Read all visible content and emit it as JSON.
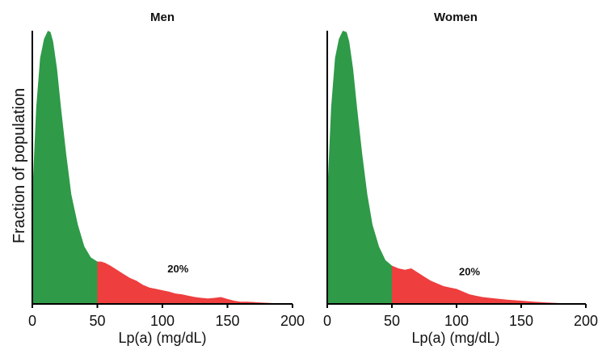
{
  "chart_data": {
    "type": "area",
    "ylabel": "Fraction of population",
    "colors": {
      "below_threshold": "#2f9a48",
      "above_threshold": "#ee3e3e"
    },
    "threshold": 50,
    "panels": [
      {
        "title": "Men",
        "xlabel": "Lp(a) (mg/dL)",
        "xlim": [
          0,
          200
        ],
        "xticks": [
          0,
          50,
          100,
          150,
          200
        ],
        "ylim": [
          0,
          1
        ],
        "annotation": {
          "text": "20%",
          "x": 112,
          "y": 0.115
        },
        "x": [
          0,
          3,
          6,
          9,
          12,
          14,
          16,
          19,
          22,
          26,
          30,
          35,
          40,
          45,
          50,
          53,
          56,
          60,
          65,
          70,
          75,
          80,
          85,
          90,
          95,
          100,
          105,
          110,
          115,
          120,
          125,
          130,
          135,
          140,
          145,
          150,
          155,
          160,
          165,
          170,
          175,
          180,
          185,
          190,
          195,
          200
        ],
        "y": [
          0.4,
          0.72,
          0.9,
          0.97,
          1.0,
          0.995,
          0.96,
          0.86,
          0.72,
          0.55,
          0.4,
          0.29,
          0.21,
          0.17,
          0.155,
          0.155,
          0.15,
          0.14,
          0.125,
          0.11,
          0.095,
          0.085,
          0.07,
          0.06,
          0.055,
          0.05,
          0.045,
          0.038,
          0.035,
          0.03,
          0.025,
          0.022,
          0.02,
          0.022,
          0.025,
          0.018,
          0.012,
          0.008,
          0.008,
          0.007,
          0.005,
          0.004,
          0.003,
          0.002,
          0.001,
          0.0
        ]
      },
      {
        "title": "Women",
        "xlabel": "Lp(a) (mg/dL)",
        "xlim": [
          0,
          200
        ],
        "xticks": [
          0,
          50,
          100,
          150,
          200
        ],
        "ylim": [
          0,
          1
        ],
        "annotation": {
          "text": "20%",
          "x": 110,
          "y": 0.105
        },
        "x": [
          0,
          3,
          6,
          9,
          12,
          15,
          17,
          20,
          23,
          27,
          31,
          35,
          40,
          45,
          50,
          55,
          60,
          65,
          70,
          75,
          80,
          85,
          90,
          95,
          100,
          105,
          110,
          115,
          120,
          130,
          140,
          150,
          160,
          170,
          180,
          190,
          200
        ],
        "y": [
          0.4,
          0.72,
          0.9,
          0.97,
          1.0,
          0.995,
          0.96,
          0.86,
          0.72,
          0.55,
          0.4,
          0.29,
          0.21,
          0.16,
          0.14,
          0.13,
          0.125,
          0.13,
          0.115,
          0.1,
          0.085,
          0.075,
          0.065,
          0.06,
          0.055,
          0.045,
          0.035,
          0.03,
          0.025,
          0.02,
          0.015,
          0.012,
          0.008,
          0.005,
          0.003,
          0.001,
          0.0
        ]
      }
    ]
  }
}
